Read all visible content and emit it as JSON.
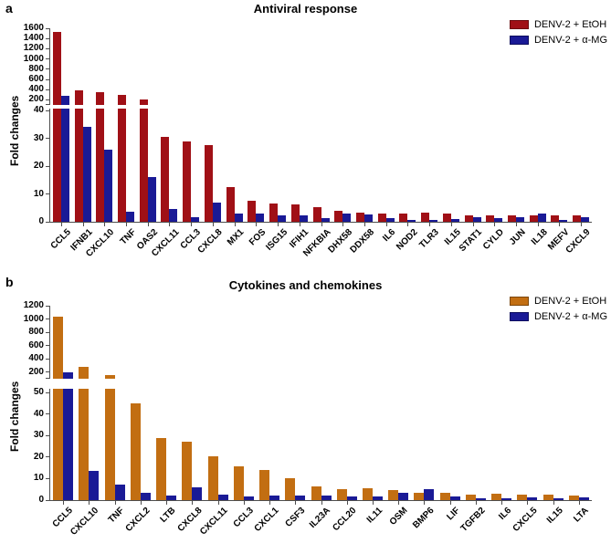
{
  "figure": {
    "background": "#ffffff",
    "text_color": "#000000",
    "axis_color": "#4d4d4d"
  },
  "chart_data": [
    {
      "type": "bar",
      "panel_letter": "a",
      "title": "Antiviral response",
      "ylabel": "Fold changes",
      "axis_break": true,
      "legend_position": "top-right",
      "upper_axis": {
        "min": 100,
        "max": 1600,
        "ticks": [
          200,
          400,
          600,
          800,
          1000,
          1200,
          1400,
          1600
        ]
      },
      "lower_axis": {
        "max": 40,
        "ticks": [
          0,
          10,
          20,
          30,
          40
        ]
      },
      "categories": [
        "CCL5",
        "IFNB1",
        "CXCL10",
        "TNF",
        "OAS2",
        "CXCL11",
        "CCL3",
        "CXCL8",
        "MX1",
        "FOS",
        "ISG15",
        "IFIH1",
        "NFKBIA",
        "DHX58",
        "DDX58",
        "IL6",
        "NOD2",
        "TLR3",
        "IL15",
        "STAT1",
        "CYLD",
        "JUN",
        "IL18",
        "MEFV",
        "CXCL9"
      ],
      "series": [
        {
          "name": "DENV-2 + EtOH",
          "color": "#A01016",
          "edge_color": "#6b0a0e",
          "values": [
            1520,
            380,
            355,
            290,
            215,
            30.5,
            29,
            27.5,
            12.5,
            7.5,
            6.7,
            6.3,
            5.2,
            3.8,
            3.2,
            3.0,
            2.8,
            3.2,
            2.8,
            2.3,
            2.2,
            2.2,
            2.2,
            2.2,
            2.4
          ]
        },
        {
          "name": "DENV-2 + α-MG",
          "color": "#1A1A96",
          "edge_color": "#0d0d5e",
          "values": [
            280,
            34,
            26,
            3.5,
            16,
            4.5,
            1.5,
            7,
            3,
            3,
            2.3,
            2.2,
            1.4,
            2.8,
            2.5,
            1.2,
            0.8,
            0.6,
            1.1,
            1.6,
            1.4,
            1.7,
            2.8,
            0.8,
            1.8
          ]
        }
      ]
    },
    {
      "type": "bar",
      "panel_letter": "b",
      "title": "Cytokines and chemokines",
      "ylabel": "Fold changes",
      "axis_break": true,
      "legend_position": "top-right",
      "upper_axis": {
        "min": 100,
        "max": 1200,
        "ticks": [
          200,
          400,
          600,
          800,
          1000,
          1200
        ]
      },
      "lower_axis": {
        "max": 50,
        "ticks": [
          0,
          10,
          20,
          30,
          40,
          50
        ]
      },
      "categories": [
        "CCL5",
        "CXCL10",
        "TNF",
        "CXCL2",
        "LTB",
        "CXCL8",
        "CXCL11",
        "CCL3",
        "CXCL1",
        "CSF3",
        "IL23A",
        "CCL20",
        "IL11",
        "OSM",
        "BMP6",
        "LIF",
        "TGFB2",
        "IL6",
        "CXCL5",
        "IL15",
        "LTA"
      ],
      "series": [
        {
          "name": "DENV-2 + EtOH",
          "color": "#C26E12",
          "edge_color": "#7c4609",
          "values": [
            1040,
            280,
            160,
            45,
            29,
            27,
            20.5,
            15.5,
            14,
            10,
            6.3,
            5.0,
            5.5,
            4.5,
            3.3,
            3.2,
            2.5,
            2.8,
            2.5,
            2.5,
            2.2
          ]
        },
        {
          "name": "DENV-2 + α-MG",
          "color": "#1A1A96",
          "edge_color": "#0d0d5e",
          "values": [
            200,
            13.5,
            7,
            3.5,
            2,
            5.8,
            2.5,
            1.5,
            2.2,
            2.3,
            2.0,
            1.8,
            1.5,
            3.2,
            5.2,
            1.5,
            0.8,
            1.0,
            1.2,
            1.0,
            1.2
          ]
        }
      ]
    }
  ]
}
